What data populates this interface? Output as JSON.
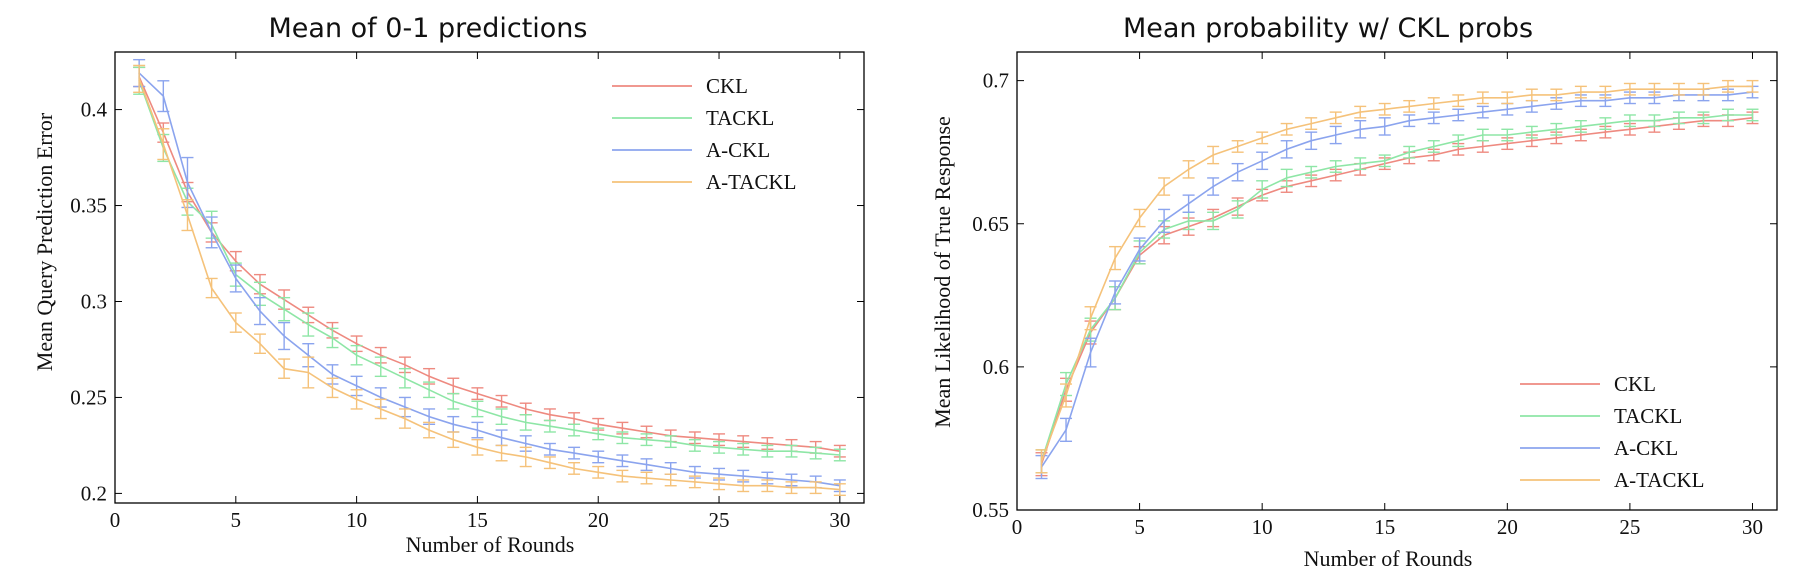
{
  "colors": {
    "CKL": "#ee8a80",
    "TACKL": "#8ee6a6",
    "A-CKL": "#8ba4ee",
    "A-TACKL": "#f5c27a"
  },
  "chart_data": [
    {
      "type": "line",
      "title": "Mean of 0-1 predictions",
      "xlabel": "Number of Rounds",
      "ylabel": "Mean Query Prediction Error",
      "xlim": [
        0,
        31
      ],
      "ylim": [
        0.195,
        0.43
      ],
      "xticks": [
        0,
        5,
        10,
        15,
        20,
        25,
        30
      ],
      "xtick_labels": [
        "0",
        "5",
        "10",
        "15",
        "20",
        "25",
        "30"
      ],
      "yticks": [
        0.2,
        0.25,
        0.3,
        0.35,
        0.4
      ],
      "ytick_labels": [
        "0.2",
        "0.25",
        "0.3",
        "0.35",
        "0.4"
      ],
      "grid": false,
      "legend_position": "top-right",
      "x": [
        1,
        2,
        3,
        4,
        5,
        6,
        7,
        8,
        9,
        10,
        11,
        12,
        13,
        14,
        15,
        16,
        17,
        18,
        19,
        20,
        21,
        22,
        23,
        24,
        25,
        26,
        27,
        28,
        29,
        30
      ],
      "series": [
        {
          "name": "CKL",
          "values": [
            0.417,
            0.388,
            0.357,
            0.336,
            0.321,
            0.309,
            0.301,
            0.293,
            0.285,
            0.278,
            0.272,
            0.267,
            0.261,
            0.256,
            0.252,
            0.248,
            0.244,
            0.241,
            0.239,
            0.236,
            0.234,
            0.232,
            0.23,
            0.229,
            0.228,
            0.227,
            0.226,
            0.225,
            0.224,
            0.222
          ],
          "errors": [
            0.005,
            0.005,
            0.005,
            0.005,
            0.005,
            0.005,
            0.005,
            0.004,
            0.004,
            0.004,
            0.004,
            0.004,
            0.004,
            0.004,
            0.003,
            0.003,
            0.003,
            0.003,
            0.003,
            0.003,
            0.003,
            0.003,
            0.003,
            0.003,
            0.003,
            0.003,
            0.003,
            0.003,
            0.003,
            0.003
          ]
        },
        {
          "name": "TACKL",
          "values": [
            0.415,
            0.38,
            0.352,
            0.34,
            0.314,
            0.304,
            0.296,
            0.288,
            0.281,
            0.272,
            0.266,
            0.26,
            0.254,
            0.248,
            0.244,
            0.24,
            0.237,
            0.235,
            0.233,
            0.231,
            0.229,
            0.228,
            0.227,
            0.225,
            0.224,
            0.223,
            0.222,
            0.222,
            0.221,
            0.22
          ],
          "errors": [
            0.007,
            0.007,
            0.007,
            0.007,
            0.006,
            0.006,
            0.006,
            0.006,
            0.005,
            0.005,
            0.005,
            0.005,
            0.004,
            0.004,
            0.004,
            0.004,
            0.004,
            0.003,
            0.003,
            0.003,
            0.003,
            0.003,
            0.003,
            0.003,
            0.003,
            0.003,
            0.003,
            0.003,
            0.003,
            0.003
          ]
        },
        {
          "name": "A-CKL",
          "values": [
            0.419,
            0.407,
            0.362,
            0.336,
            0.312,
            0.295,
            0.282,
            0.272,
            0.262,
            0.256,
            0.25,
            0.245,
            0.24,
            0.236,
            0.233,
            0.229,
            0.226,
            0.223,
            0.221,
            0.219,
            0.217,
            0.215,
            0.213,
            0.211,
            0.21,
            0.209,
            0.208,
            0.207,
            0.206,
            0.204
          ],
          "errors": [
            0.007,
            0.008,
            0.013,
            0.008,
            0.007,
            0.007,
            0.007,
            0.006,
            0.005,
            0.005,
            0.005,
            0.005,
            0.004,
            0.004,
            0.004,
            0.004,
            0.004,
            0.003,
            0.003,
            0.003,
            0.003,
            0.003,
            0.003,
            0.003,
            0.003,
            0.003,
            0.003,
            0.003,
            0.003,
            0.003
          ]
        },
        {
          "name": "A-TACKL",
          "values": [
            0.416,
            0.382,
            0.345,
            0.307,
            0.289,
            0.278,
            0.265,
            0.263,
            0.255,
            0.249,
            0.244,
            0.239,
            0.233,
            0.228,
            0.224,
            0.221,
            0.219,
            0.216,
            0.213,
            0.211,
            0.209,
            0.208,
            0.207,
            0.206,
            0.205,
            0.204,
            0.204,
            0.203,
            0.203,
            0.202
          ],
          "errors": [
            0.007,
            0.008,
            0.008,
            0.005,
            0.005,
            0.005,
            0.005,
            0.008,
            0.005,
            0.005,
            0.005,
            0.005,
            0.004,
            0.004,
            0.004,
            0.004,
            0.005,
            0.003,
            0.003,
            0.003,
            0.003,
            0.003,
            0.003,
            0.003,
            0.003,
            0.003,
            0.003,
            0.003,
            0.003,
            0.003
          ]
        }
      ]
    },
    {
      "type": "line",
      "title": "Mean probability w/ CKL probs",
      "xlabel": "Number of Rounds",
      "ylabel": "Mean Likelihood of True Response",
      "xlim": [
        0,
        31
      ],
      "ylim": [
        0.55,
        0.71
      ],
      "xticks": [
        0,
        5,
        10,
        15,
        20,
        25,
        30
      ],
      "xtick_labels": [
        "0",
        "5",
        "10",
        "15",
        "20",
        "25",
        "30"
      ],
      "yticks": [
        0.55,
        0.6,
        0.65,
        0.7
      ],
      "ytick_labels": [
        "0.55",
        "0.6",
        "0.65",
        "0.7"
      ],
      "grid": false,
      "legend_position": "bottom-right",
      "x": [
        1,
        2,
        3,
        4,
        5,
        6,
        7,
        8,
        9,
        10,
        11,
        12,
        13,
        14,
        15,
        16,
        17,
        18,
        19,
        20,
        21,
        22,
        23,
        24,
        25,
        26,
        27,
        28,
        29,
        30
      ],
      "series": [
        {
          "name": "CKL",
          "values": [
            0.566,
            0.592,
            0.612,
            0.624,
            0.639,
            0.646,
            0.649,
            0.652,
            0.656,
            0.66,
            0.663,
            0.665,
            0.667,
            0.669,
            0.671,
            0.673,
            0.674,
            0.676,
            0.677,
            0.678,
            0.679,
            0.68,
            0.681,
            0.682,
            0.683,
            0.684,
            0.685,
            0.686,
            0.686,
            0.687
          ],
          "errors": [
            0.004,
            0.004,
            0.004,
            0.004,
            0.003,
            0.003,
            0.003,
            0.003,
            0.003,
            0.002,
            0.002,
            0.002,
            0.002,
            0.002,
            0.002,
            0.002,
            0.002,
            0.002,
            0.002,
            0.002,
            0.002,
            0.002,
            0.002,
            0.002,
            0.002,
            0.002,
            0.002,
            0.002,
            0.002,
            0.002
          ]
        },
        {
          "name": "TACKL",
          "values": [
            0.567,
            0.594,
            0.613,
            0.624,
            0.64,
            0.648,
            0.651,
            0.651,
            0.655,
            0.662,
            0.666,
            0.668,
            0.67,
            0.671,
            0.672,
            0.675,
            0.677,
            0.679,
            0.681,
            0.681,
            0.682,
            0.683,
            0.684,
            0.685,
            0.686,
            0.686,
            0.687,
            0.687,
            0.688,
            0.688
          ],
          "errors": [
            0.004,
            0.004,
            0.004,
            0.004,
            0.004,
            0.003,
            0.003,
            0.003,
            0.003,
            0.003,
            0.003,
            0.002,
            0.002,
            0.002,
            0.002,
            0.002,
            0.002,
            0.002,
            0.002,
            0.002,
            0.002,
            0.002,
            0.002,
            0.002,
            0.002,
            0.002,
            0.002,
            0.002,
            0.002,
            0.002
          ]
        },
        {
          "name": "A-CKL",
          "values": [
            0.565,
            0.578,
            0.605,
            0.626,
            0.641,
            0.651,
            0.657,
            0.663,
            0.668,
            0.672,
            0.676,
            0.679,
            0.681,
            0.683,
            0.684,
            0.686,
            0.687,
            0.688,
            0.689,
            0.69,
            0.691,
            0.692,
            0.693,
            0.693,
            0.694,
            0.694,
            0.695,
            0.695,
            0.695,
            0.696
          ],
          "errors": [
            0.004,
            0.004,
            0.005,
            0.004,
            0.004,
            0.004,
            0.003,
            0.003,
            0.003,
            0.003,
            0.003,
            0.003,
            0.003,
            0.003,
            0.003,
            0.002,
            0.002,
            0.002,
            0.002,
            0.002,
            0.002,
            0.002,
            0.002,
            0.002,
            0.002,
            0.002,
            0.002,
            0.002,
            0.002,
            0.002
          ]
        },
        {
          "name": "A-TACKL",
          "values": [
            0.567,
            0.59,
            0.617,
            0.638,
            0.652,
            0.663,
            0.669,
            0.674,
            0.677,
            0.68,
            0.683,
            0.685,
            0.687,
            0.689,
            0.69,
            0.691,
            0.692,
            0.693,
            0.694,
            0.694,
            0.695,
            0.695,
            0.696,
            0.696,
            0.697,
            0.697,
            0.697,
            0.697,
            0.698,
            0.698
          ],
          "errors": [
            0.004,
            0.004,
            0.004,
            0.004,
            0.003,
            0.003,
            0.003,
            0.003,
            0.002,
            0.002,
            0.002,
            0.002,
            0.002,
            0.002,
            0.002,
            0.002,
            0.002,
            0.002,
            0.002,
            0.002,
            0.002,
            0.002,
            0.002,
            0.002,
            0.002,
            0.002,
            0.002,
            0.002,
            0.002,
            0.002
          ]
        }
      ]
    }
  ]
}
